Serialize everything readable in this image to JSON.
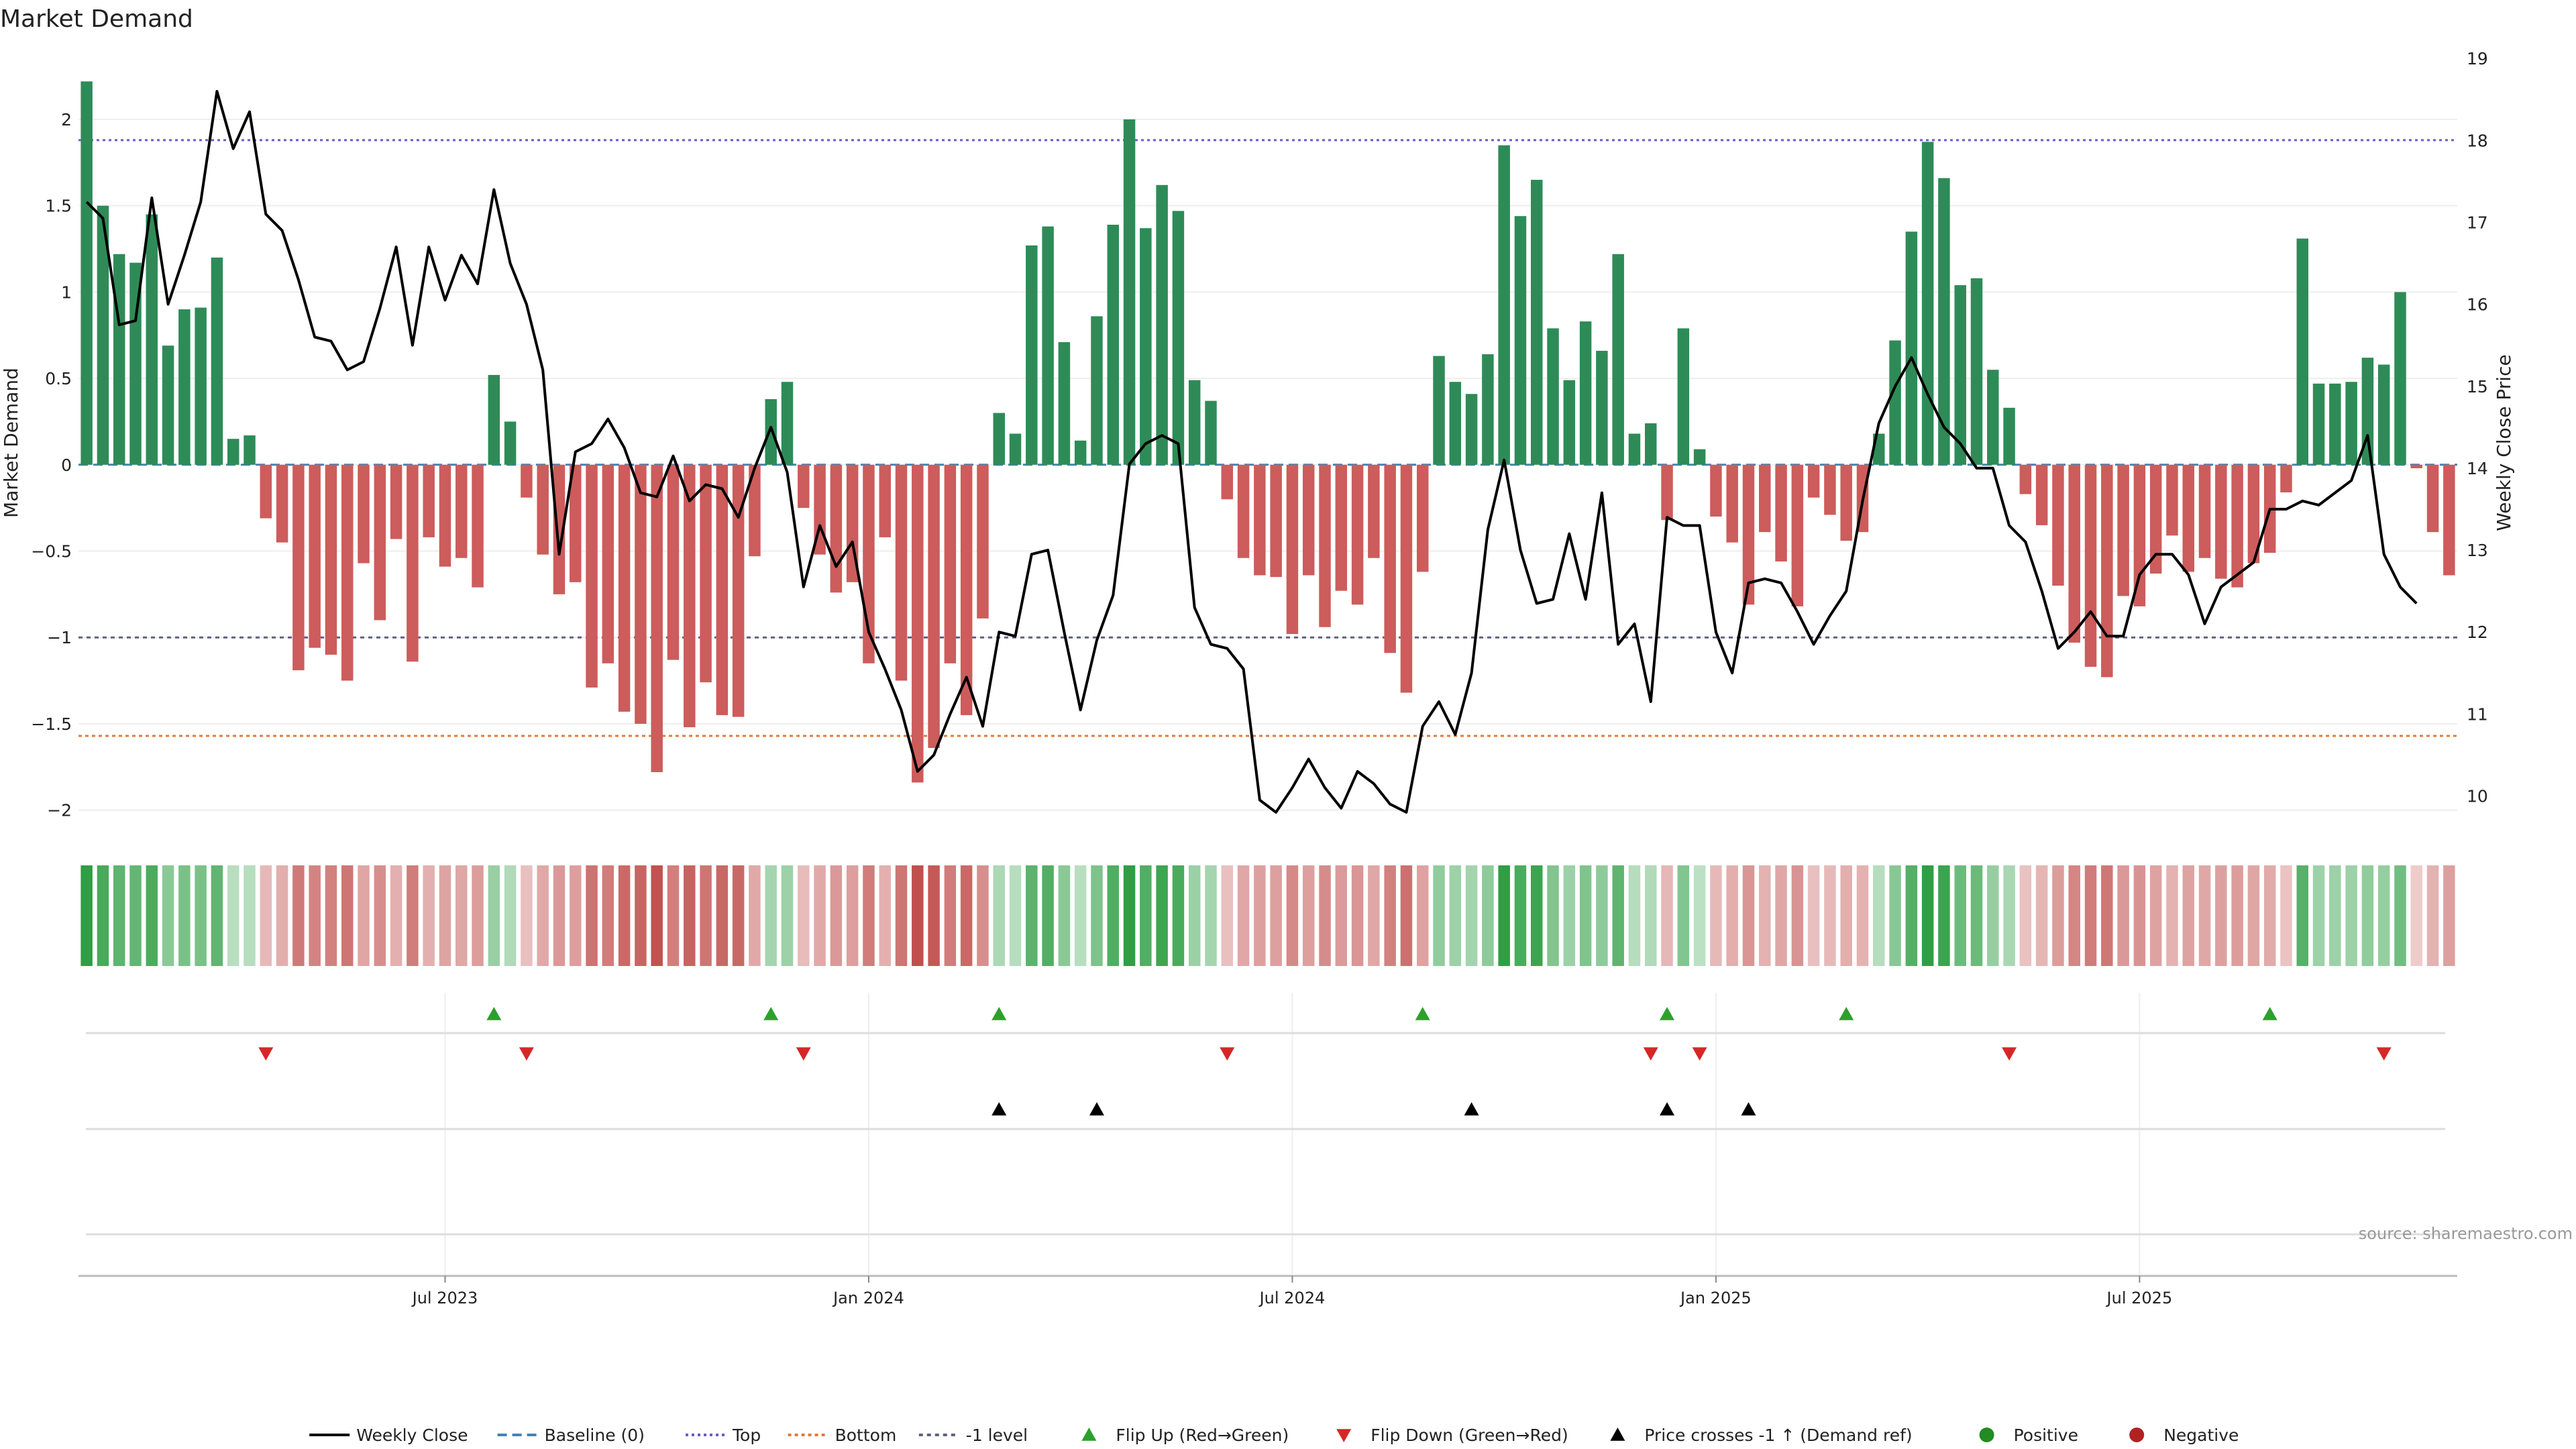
{
  "chart_data": {
    "type": "bar",
    "title": "Market Demand",
    "ylabel": "Market Demand",
    "y2label": "Weekly Close Price",
    "ylim": [
      -2.25,
      2.4
    ],
    "y2lim": [
      9.3,
      19.1
    ],
    "yticks": [
      {
        "v": 2,
        "label": "2"
      },
      {
        "v": 1.5,
        "label": "1.5"
      },
      {
        "v": 1,
        "label": "1"
      },
      {
        "v": 0.5,
        "label": "0.5"
      },
      {
        "v": 0,
        "label": "0"
      },
      {
        "v": -0.5,
        "label": "−0.5"
      },
      {
        "v": -1,
        "label": "−1"
      },
      {
        "v": -1.5,
        "label": "−1.5"
      },
      {
        "v": -2,
        "label": "−2"
      }
    ],
    "y2ticks": [
      {
        "v": 19,
        "label": "19"
      },
      {
        "v": 18,
        "label": "18"
      },
      {
        "v": 17,
        "label": "17"
      },
      {
        "v": 16,
        "label": "16"
      },
      {
        "v": 15,
        "label": "15"
      },
      {
        "v": 14,
        "label": "14"
      },
      {
        "v": 13,
        "label": "13"
      },
      {
        "v": 12,
        "label": "12"
      },
      {
        "v": 11,
        "label": "11"
      },
      {
        "v": 10,
        "label": "10"
      }
    ],
    "xticks": [
      {
        "index": 22,
        "label": "Jul 2023"
      },
      {
        "index": 48,
        "label": "Jan 2024"
      },
      {
        "index": 74,
        "label": "Jul 2024"
      },
      {
        "index": 100,
        "label": "Jan 2025"
      },
      {
        "index": 126,
        "label": "Jul 2025"
      }
    ],
    "reference_lines": {
      "baseline": 0,
      "top": 1.88,
      "bottom": -1.57,
      "minus_one": -1
    },
    "demand": [
      2.22,
      1.5,
      1.22,
      1.17,
      1.45,
      0.69,
      0.9,
      0.91,
      1.2,
      0.15,
      0.17,
      -0.31,
      -0.45,
      -1.19,
      -1.06,
      -1.1,
      -1.25,
      -0.57,
      -0.9,
      -0.43,
      -1.14,
      -0.42,
      -0.59,
      -0.54,
      -0.71,
      0.52,
      0.25,
      -0.19,
      -0.52,
      -0.75,
      -0.68,
      -1.29,
      -1.15,
      -1.43,
      -1.5,
      -1.78,
      -1.13,
      -1.52,
      -1.26,
      -1.45,
      -1.46,
      -0.53,
      0.38,
      0.48,
      -0.25,
      -0.52,
      -0.74,
      -0.68,
      -1.15,
      -0.42,
      -1.25,
      -1.84,
      -1.64,
      -1.15,
      -1.45,
      -0.89,
      0.3,
      0.18,
      1.27,
      1.38,
      0.71,
      0.14,
      0.86,
      1.39,
      2.0,
      1.37,
      1.62,
      1.47,
      0.49,
      0.37,
      -0.2,
      -0.54,
      -0.64,
      -0.65,
      -0.98,
      -0.64,
      -0.94,
      -0.73,
      -0.81,
      -0.54,
      -1.09,
      -1.32,
      -0.62,
      0.63,
      0.48,
      0.41,
      0.64,
      1.85,
      1.44,
      1.65,
      0.79,
      0.49,
      0.83,
      0.66,
      1.22,
      0.18,
      0.24,
      -0.32,
      0.79,
      0.09,
      -0.3,
      -0.45,
      -0.81,
      -0.39,
      -0.56,
      -0.82,
      -0.19,
      -0.29,
      -0.44,
      -0.39,
      0.18,
      0.72,
      1.35,
      1.87,
      1.66,
      1.04,
      1.08,
      0.55,
      0.33,
      -0.17,
      -0.35,
      -0.7,
      -1.03,
      -1.17,
      -1.23,
      -0.76,
      -0.82,
      -0.63,
      -0.41,
      -0.62,
      -0.54,
      -0.66,
      -0.71,
      -0.57,
      -0.51,
      -0.16,
      1.31,
      0.47,
      0.47,
      0.48,
      0.62,
      0.58,
      1.0,
      -0.02,
      -0.39,
      -0.64
    ],
    "weekly_close": [
      17.25,
      17.05,
      15.75,
      15.8,
      17.3,
      16.0,
      16.6,
      17.25,
      18.6,
      17.9,
      18.35,
      17.1,
      16.9,
      16.3,
      15.6,
      15.55,
      15.2,
      15.3,
      15.95,
      16.7,
      15.5,
      16.7,
      16.05,
      16.6,
      16.25,
      17.4,
      16.5,
      16.0,
      15.2,
      12.95,
      14.2,
      14.3,
      14.6,
      14.25,
      13.7,
      13.65,
      14.15,
      13.6,
      13.8,
      13.75,
      13.4,
      14.0,
      14.5,
      13.95,
      12.55,
      13.3,
      12.8,
      13.1,
      12.0,
      11.55,
      11.05,
      10.3,
      10.5,
      11.0,
      11.45,
      10.85,
      12.0,
      11.95,
      12.95,
      13.0,
      12.0,
      11.05,
      11.9,
      12.45,
      14.05,
      14.3,
      14.4,
      14.3,
      12.3,
      11.85,
      11.8,
      11.55,
      9.95,
      9.8,
      10.1,
      10.45,
      10.1,
      9.85,
      10.3,
      10.15,
      9.9,
      9.8,
      10.85,
      11.15,
      10.75,
      11.5,
      13.25,
      14.1,
      13.0,
      12.35,
      12.4,
      13.2,
      12.4,
      13.7,
      11.85,
      12.1,
      11.15,
      13.4,
      13.3,
      13.3,
      12.0,
      11.5,
      12.6,
      12.65,
      12.6,
      12.25,
      11.85,
      12.2,
      12.5,
      13.6,
      14.55,
      15.0,
      15.35,
      14.9,
      14.5,
      14.3,
      14.0,
      14.0,
      13.3,
      13.1,
      12.5,
      11.8,
      12.0,
      12.25,
      11.95,
      11.95,
      12.7,
      12.95,
      12.95,
      12.7,
      12.1,
      12.55,
      12.7,
      12.85,
      13.5,
      13.5,
      13.6,
      13.55,
      13.7,
      13.85,
      14.4,
      12.95,
      12.55,
      12.35
    ],
    "flip_up_indices": [
      25,
      42,
      56,
      82,
      97,
      108,
      134
    ],
    "flip_down_indices": [
      11,
      27,
      44,
      70,
      96,
      99,
      118,
      141
    ],
    "price_cross_indices": [
      56,
      62,
      85,
      97,
      102
    ],
    "legend": [
      {
        "key": "weekly_close",
        "label": "Weekly Close"
      },
      {
        "key": "baseline",
        "label": "Baseline (0)"
      },
      {
        "key": "top",
        "label": "Top"
      },
      {
        "key": "bottom",
        "label": "Bottom"
      },
      {
        "key": "minus_one",
        "label": "-1 level"
      },
      {
        "key": "flip_up",
        "label": "Flip Up (Red→Green)"
      },
      {
        "key": "flip_down",
        "label": "Flip Down (Green→Red)"
      },
      {
        "key": "price_cross",
        "label": "Price crosses -1 ↑ (Demand ref)"
      },
      {
        "key": "positive",
        "label": "Positive"
      },
      {
        "key": "negative",
        "label": "Negative"
      }
    ],
    "source": "source: sharemaestro.com",
    "colors": {
      "positive": "#2e8b57",
      "negative": "#cd5c5c",
      "heat_positive": "#2f9e44",
      "heat_negative": "#c0504d",
      "close": "#000000",
      "baseline": "#4682b4",
      "top": "#6a5acd",
      "bottom": "#e07b39",
      "minus_one": "#606080",
      "flip_up": "#2ca02c",
      "flip_down": "#d62728",
      "cross": "#000000",
      "legend_positive": "#228b22",
      "legend_negative": "#b22222"
    }
  }
}
